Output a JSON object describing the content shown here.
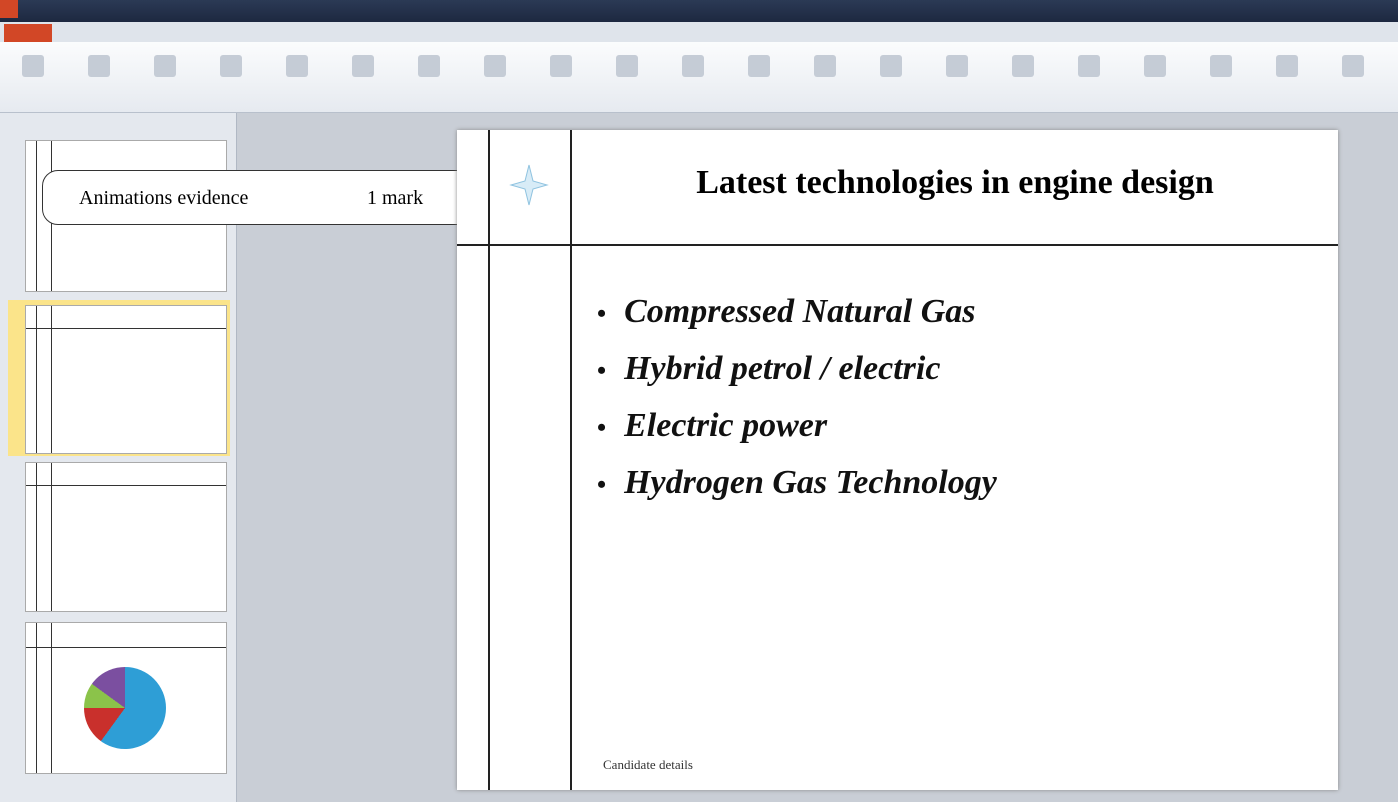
{
  "callout": {
    "label": "Animations evidence",
    "mark": "1 mark"
  },
  "slide": {
    "title": "Latest technologies in engine design",
    "bullets": [
      "Compressed Natural Gas",
      "Hybrid petrol / electric",
      "Electric power",
      "Hydrogen Gas Technology"
    ],
    "footer": "Candidate details"
  }
}
